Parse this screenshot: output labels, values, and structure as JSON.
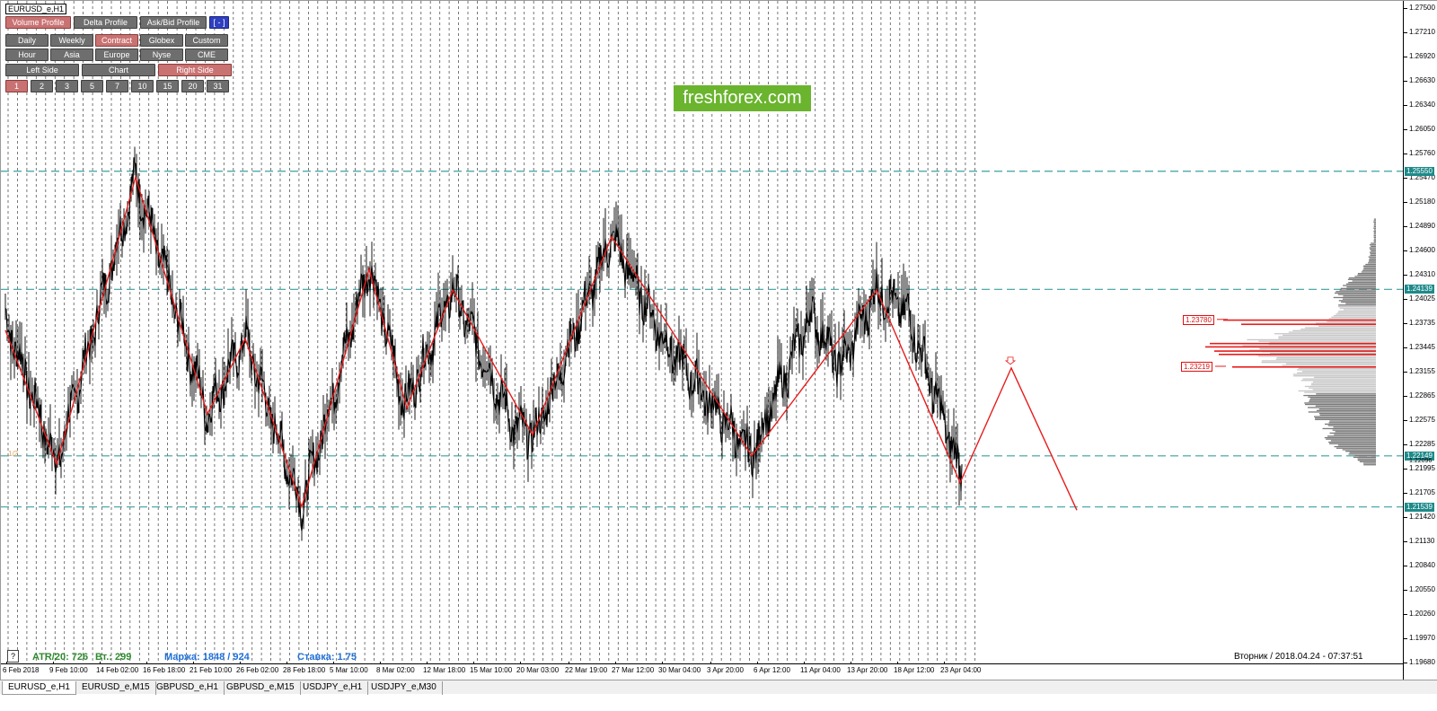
{
  "window": {
    "symbol_title": "EURUSD_e,H1"
  },
  "logo": {
    "text": "freshforex.com"
  },
  "panel": {
    "row1": [
      {
        "label": "Volume Profile",
        "active": true
      },
      {
        "label": "Delta Profile",
        "active": false
      },
      {
        "label": "Ask/Bid Profile",
        "active": false
      },
      {
        "label": "[ - ]",
        "active": false,
        "blue": true
      }
    ],
    "row2": [
      {
        "label": "Daily",
        "active": false
      },
      {
        "label": "Weekly",
        "active": false
      },
      {
        "label": "Contract",
        "active": true
      },
      {
        "label": "Globex",
        "active": false
      },
      {
        "label": "Custom",
        "active": false
      }
    ],
    "row3": [
      {
        "label": "Hour",
        "active": false
      },
      {
        "label": "Asia",
        "active": false
      },
      {
        "label": "Europe",
        "active": false
      },
      {
        "label": "Nyse",
        "active": false
      },
      {
        "label": "CME",
        "active": false
      }
    ],
    "row4": [
      {
        "label": "Left Side",
        "active": false
      },
      {
        "label": "Chart",
        "active": false
      },
      {
        "label": "Right Side",
        "active": true
      }
    ],
    "row5": [
      {
        "label": "1",
        "active": true
      },
      {
        "label": "2",
        "active": false
      },
      {
        "label": "3",
        "active": false
      },
      {
        "label": "5",
        "active": false
      },
      {
        "label": "7",
        "active": false
      },
      {
        "label": "10",
        "active": false
      },
      {
        "label": "15",
        "active": false
      },
      {
        "label": "20",
        "active": false
      },
      {
        "label": "31",
        "active": false
      }
    ]
  },
  "price_axis": {
    "labels": [
      "1.27500",
      "1.27210",
      "1.26920",
      "1.26630",
      "1.26340",
      "1.26050",
      "1.25760",
      "1.25470",
      "1.25180",
      "1.24890",
      "1.24600",
      "1.24310",
      "1.24025",
      "1.23735",
      "1.23445",
      "1.23155",
      "1.22865",
      "1.22575",
      "1.22285",
      "1.21995",
      "1.21705",
      "1.21420",
      "1.21130",
      "1.20840",
      "1.20550",
      "1.20260",
      "1.19970",
      "1.19680"
    ],
    "levels": [
      "1.25550",
      "1.24139",
      "1.22149",
      "1.21539"
    ],
    "extra_small": "1.22096"
  },
  "time_axis": {
    "labels": [
      "6 Feb 2018",
      "9 Feb 10:00",
      "14 Feb 02:00",
      "16 Feb 18:00",
      "21 Feb 10:00",
      "26 Feb 02:00",
      "28 Feb 18:00",
      "5 Mar 10:00",
      "8 Mar 02:00",
      "12 Mar 18:00",
      "15 Mar 10:00",
      "20 Mar 03:00",
      "22 Mar 19:00",
      "27 Mar 12:00",
      "30 Mar 04:00",
      "3 Apr 20:00",
      "6 Apr 12:00",
      "11 Apr 04:00",
      "13 Apr 20:00",
      "18 Apr 12:00",
      "23 Apr 04:00"
    ]
  },
  "volume_profile": {
    "poc_upper": "1.23780",
    "poc_lower": "1.23219"
  },
  "half_mark": "1/2",
  "stats": {
    "atr": "ATR/20: 726",
    "vt": "Вт.: 299",
    "marzha": "Маржа: 1848 / 924",
    "stavka": "Ставка: 1.75"
  },
  "status": {
    "datetime": "Вторник  /  2018.04.24  -  07:37:51",
    "help": "?"
  },
  "tabs": [
    {
      "label": "EURUSD_e,H1",
      "active": true
    },
    {
      "label": "EURUSD_e,M15",
      "active": false
    },
    {
      "label": "GBPUSD_e,H1",
      "active": false
    },
    {
      "label": "GBPUSD_e,M15",
      "active": false
    },
    {
      "label": "USDJPY_e,H1",
      "active": false
    },
    {
      "label": "USDJPY_e,M30",
      "active": false
    }
  ],
  "colors": {
    "level_line": "#3aa0a0",
    "zigzag": "#e81c1c",
    "candles": "#000000",
    "profile_dark": "#7a7a7a",
    "profile_light": "#c8c8c8",
    "profile_poc": "#e81c1c",
    "stat_green": "#2e8b2e",
    "stat_blue": "#1e6fd9"
  }
}
